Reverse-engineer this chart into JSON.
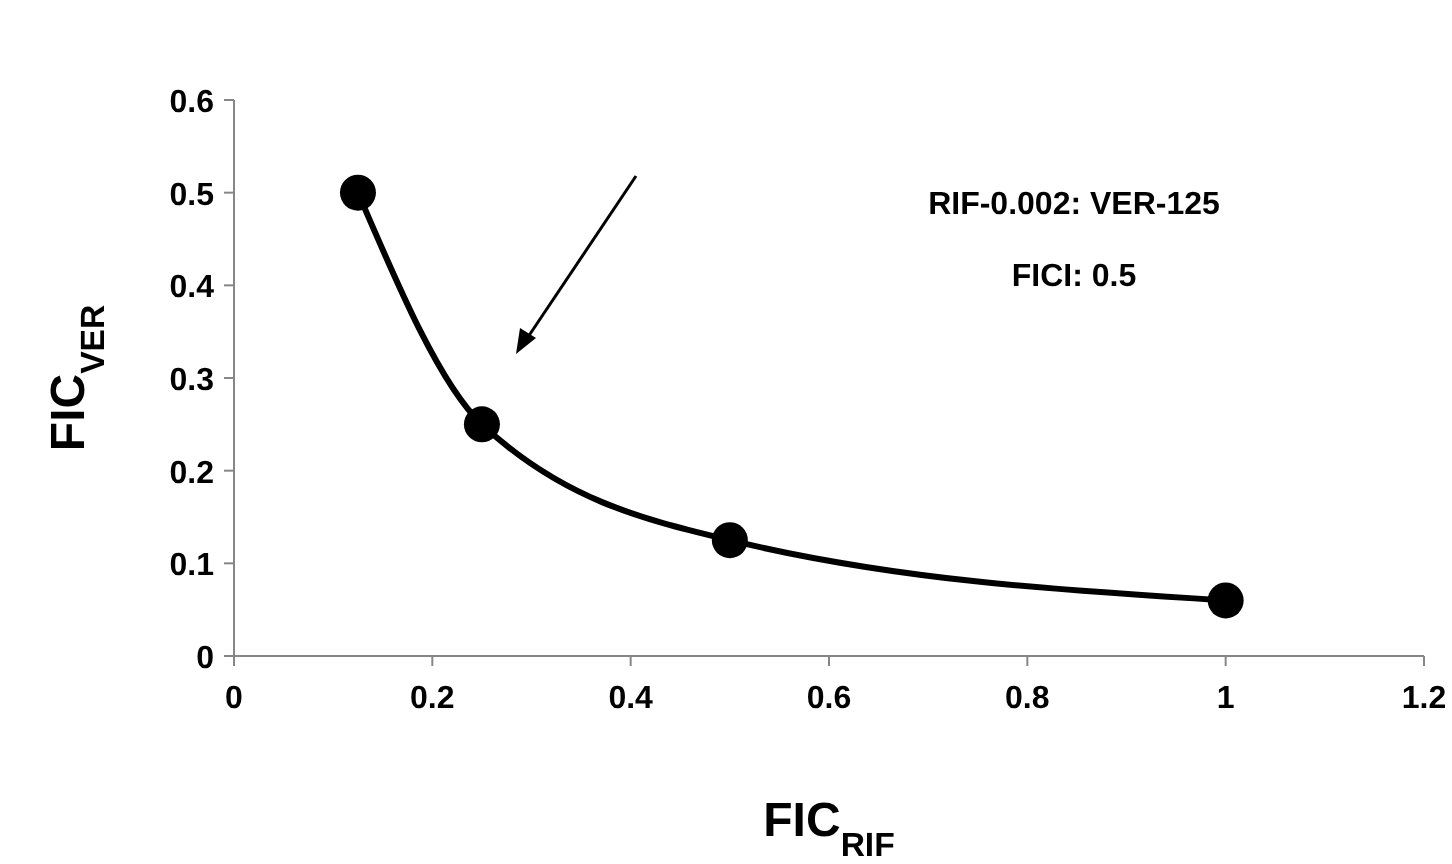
{
  "chart_data": {
    "type": "line",
    "xlabel": "FIC$_{RIF}$",
    "ylabel": "FIC$_{VER}$",
    "x": [
      0.125,
      0.25,
      0.5,
      1
    ],
    "series": [
      {
        "color": "#000000",
        "values": [
          0.5,
          0.25,
          0.125,
          0.06
        ]
      }
    ],
    "xlim": [
      0,
      1.2
    ],
    "xticks": [
      0,
      0.2,
      0.4,
      0.6,
      0.8,
      1,
      1.2
    ],
    "ylim": [
      0,
      0.6
    ],
    "yticks": [
      0,
      0.1,
      0.2,
      0.3,
      0.4,
      0.5,
      0.6
    ],
    "grid": false,
    "marker": "circle",
    "line_style": "solid",
    "annotations": [
      "RIF-0.002: VER-125",
      "FICI: 0.5"
    ]
  }
}
